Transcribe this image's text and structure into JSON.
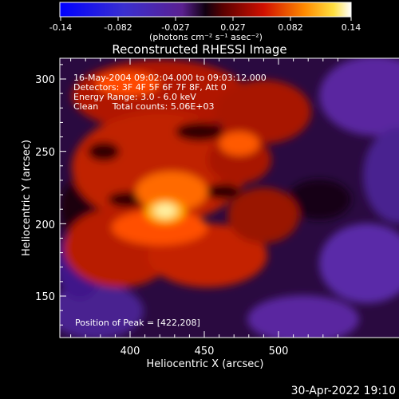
{
  "colorbar": {
    "ticks": [
      "-0.14",
      "-0.082",
      "-0.027",
      "0.027",
      "0.082",
      "0.14"
    ],
    "units": "(photons cm⁻² s⁻¹ asec⁻²)"
  },
  "title": "Reconstructed RHESSI Image",
  "info": {
    "line1": "16-May-2004 09:02:04.000 to 09:03:12.000",
    "line2": "Detectors: 3F 4F 5F 6F 7F 8F, Att 0",
    "line3": "Energy Range: 3.0 - 6.0 keV",
    "line4": "Clean     Total counts: 5.06E+03"
  },
  "peak_text": "Position of Peak = [422,208]",
  "axes": {
    "xlabel": "Heliocentric X (arcsec)",
    "ylabel": "Heliocentric Y (arcsec)",
    "xticks": [
      "400",
      "450",
      "500"
    ],
    "yticks": [
      "150",
      "200",
      "250",
      "300"
    ]
  },
  "timestamp": "30-Apr-2022 19:10",
  "colors": {
    "background": "#000000",
    "frame": "#ffffff"
  }
}
